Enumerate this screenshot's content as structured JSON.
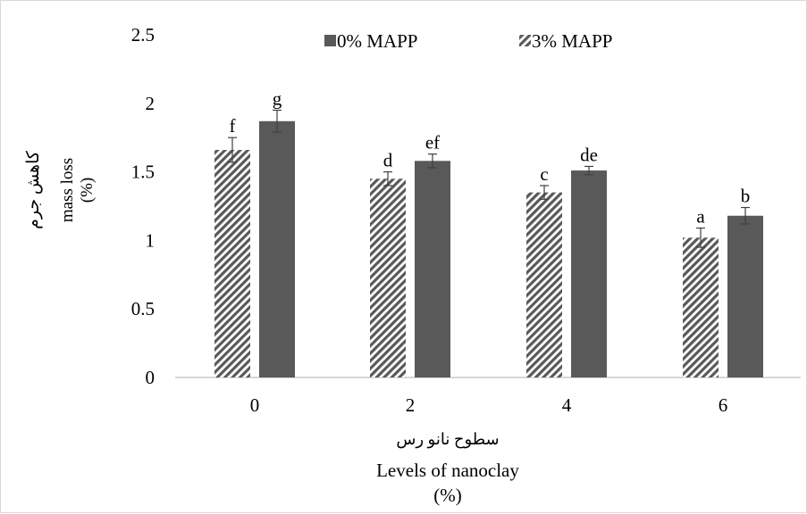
{
  "chart_data": {
    "type": "bar",
    "title": "",
    "xlabel": "سطوح نانو رس",
    "xlabel_en_line1": "Levels of nanoclay",
    "xlabel_en_line2": "(%)",
    "ylabel_fa": "کاهش جرم",
    "ylabel_en_line1": "mass loss",
    "ylabel_en_line2": "(%)",
    "categories": [
      "0",
      "2",
      "4",
      "6"
    ],
    "ylim": [
      0,
      2.5
    ],
    "yticks": [
      "0",
      "0.5",
      "1",
      "1.5",
      "2",
      "2.5"
    ],
    "grid": false,
    "legend_position": "top",
    "series": [
      {
        "name": "3% MAPP",
        "pattern": "diagonal-hatch",
        "color": "#595959",
        "values": [
          1.66,
          1.45,
          1.35,
          1.02
        ],
        "errors": [
          0.09,
          0.05,
          0.05,
          0.07
        ],
        "labels": [
          "f",
          "d",
          "c",
          "a"
        ]
      },
      {
        "name": "0% MAPP",
        "pattern": "solid",
        "color": "#595959",
        "values": [
          1.87,
          1.58,
          1.51,
          1.18
        ],
        "errors": [
          0.08,
          0.05,
          0.03,
          0.06
        ],
        "labels": [
          "g",
          "ef",
          "de",
          "b"
        ]
      }
    ],
    "legend_order": [
      "0% MAPP",
      "3% MAPP"
    ]
  }
}
